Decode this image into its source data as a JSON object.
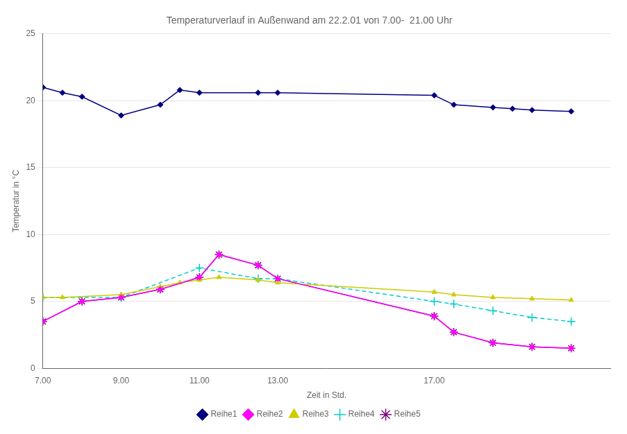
{
  "chart_data": {
    "type": "line",
    "title": "Temperaturverlauf in Außenwand am 22.2.01 von 7.00-  21.00 Uhr",
    "x_label": "Zeit in Std.",
    "y_label": "Temperatur in °C",
    "xlim": [
      7.0,
      21.5
    ],
    "xticks": [
      {
        "value": 7.0,
        "label": "7.00"
      },
      {
        "value": 9.0,
        "label": "9.00"
      },
      {
        "value": 11.0,
        "label": "11.00"
      },
      {
        "value": 13.0,
        "label": "13.00"
      },
      {
        "value": 17.0,
        "label": "17.00"
      }
    ],
    "ylim": [
      0,
      25
    ],
    "yticks": [
      0,
      5,
      10,
      15,
      20,
      25
    ],
    "grid": "y",
    "legend": "bottom",
    "series": [
      {
        "name": "Reihe1",
        "color": "#000080",
        "marker": "diamond",
        "line_style": "solid",
        "x": [
          7.0,
          7.5,
          8.0,
          9.0,
          10.0,
          10.5,
          11.0,
          12.5,
          13.0,
          17.0,
          17.5,
          18.5,
          19.0,
          19.5,
          20.5
        ],
        "values": [
          21.0,
          20.6,
          20.3,
          18.9,
          19.7,
          20.8,
          20.6,
          20.6,
          20.6,
          20.4,
          19.7,
          19.5,
          19.4,
          19.3,
          19.2
        ]
      },
      {
        "name": "Reihe2",
        "color": "#ff00ff",
        "marker": "diamond",
        "line_style": "solid",
        "x": [
          7.0,
          8.0,
          9.0,
          10.0,
          11.0,
          11.5,
          12.5,
          13.0,
          17.0,
          17.5,
          18.5,
          19.5,
          20.5
        ],
        "values": [
          3.5,
          5.0,
          5.3,
          5.9,
          6.8,
          8.5,
          7.7,
          6.7,
          3.9,
          2.7,
          1.9,
          1.6,
          1.5
        ]
      },
      {
        "name": "Reihe3",
        "color": "#cccc00",
        "marker": "triangle",
        "line_style": "solid",
        "x": [
          7.0,
          7.5,
          9.0,
          10.0,
          10.5,
          11.0,
          11.5,
          12.5,
          13.0,
          17.0,
          17.5,
          18.5,
          19.5,
          20.5
        ],
        "values": [
          5.3,
          5.3,
          5.5,
          6.1,
          6.4,
          6.6,
          6.8,
          6.6,
          6.4,
          5.7,
          5.5,
          5.3,
          5.2,
          5.1
        ]
      },
      {
        "name": "Reihe4",
        "color": "#00cccc",
        "marker": "plus",
        "line_style": "dashed",
        "x": [
          7.0,
          9.0,
          11.0,
          12.5,
          13.0,
          17.0,
          17.5,
          18.5,
          19.5,
          20.5
        ],
        "values": [
          5.3,
          5.3,
          7.5,
          6.7,
          6.7,
          5.0,
          4.8,
          4.3,
          3.8,
          3.5
        ]
      },
      {
        "name": "Reihe5",
        "color": "#800080",
        "marker": "star",
        "line_style": "solid",
        "x": [
          7.0,
          8.0,
          9.0,
          10.0,
          11.0,
          11.5,
          12.5,
          13.0,
          17.0,
          17.5,
          18.5,
          19.5,
          20.5
        ],
        "values": [
          3.5,
          5.0,
          5.3,
          5.9,
          6.8,
          8.5,
          7.7,
          6.7,
          3.9,
          2.7,
          1.9,
          1.6,
          1.5
        ]
      }
    ]
  }
}
